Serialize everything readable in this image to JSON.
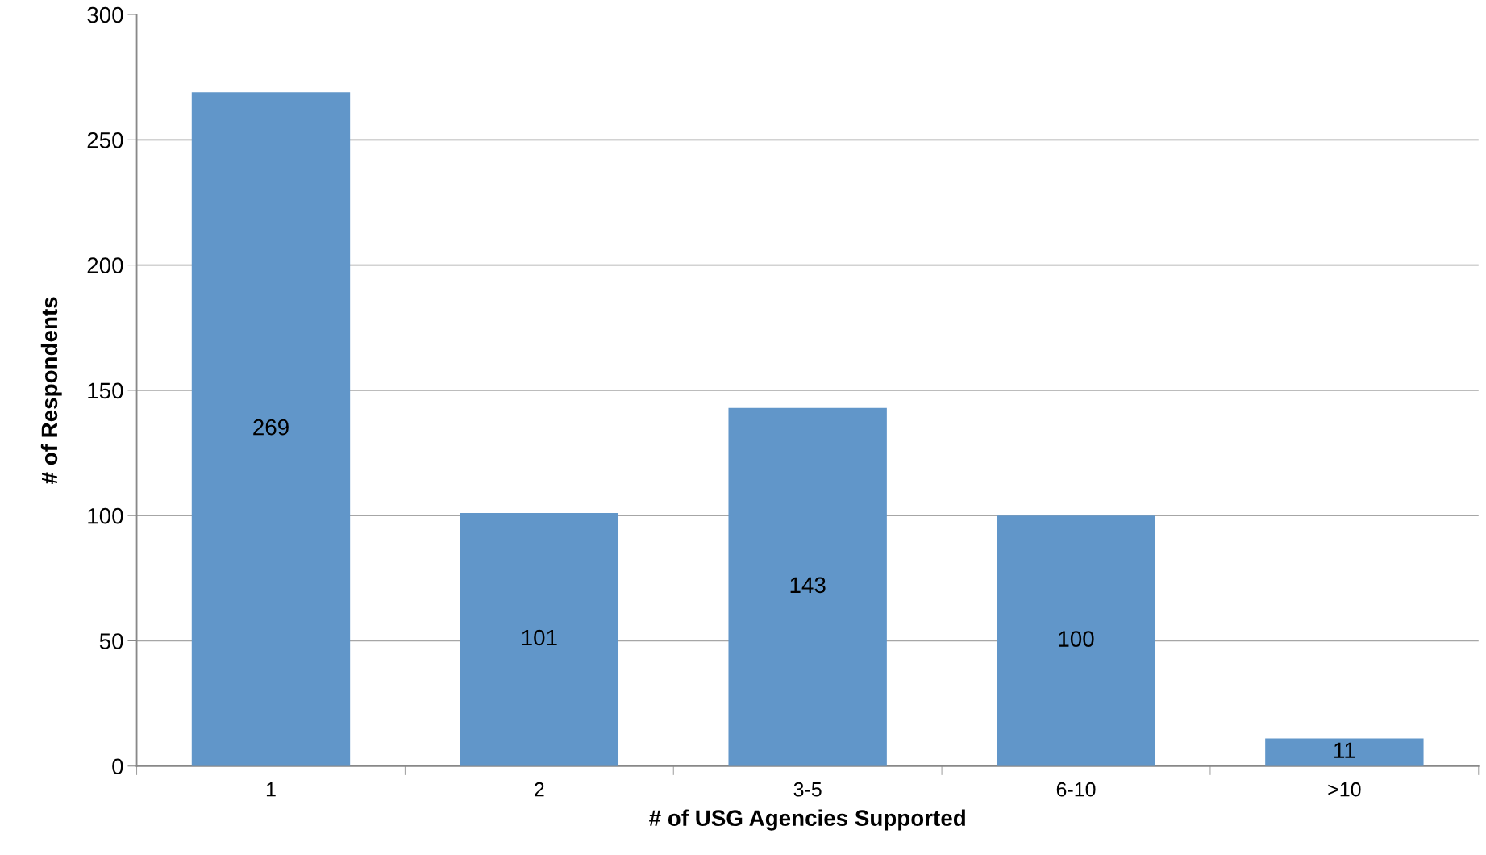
{
  "chart_data": {
    "type": "bar",
    "xlabel": "# of USG Agencies Supported",
    "ylabel": "# of Respondents",
    "categories": [
      "1",
      "2",
      "3-5",
      "6-10",
      ">10"
    ],
    "values": [
      269,
      101,
      143,
      100,
      11
    ],
    "color": "#6196c9",
    "ylim": [
      0,
      300
    ],
    "yticks": [
      0,
      50,
      100,
      150,
      200,
      250,
      300
    ],
    "grid": "y",
    "data_labels": true
  }
}
